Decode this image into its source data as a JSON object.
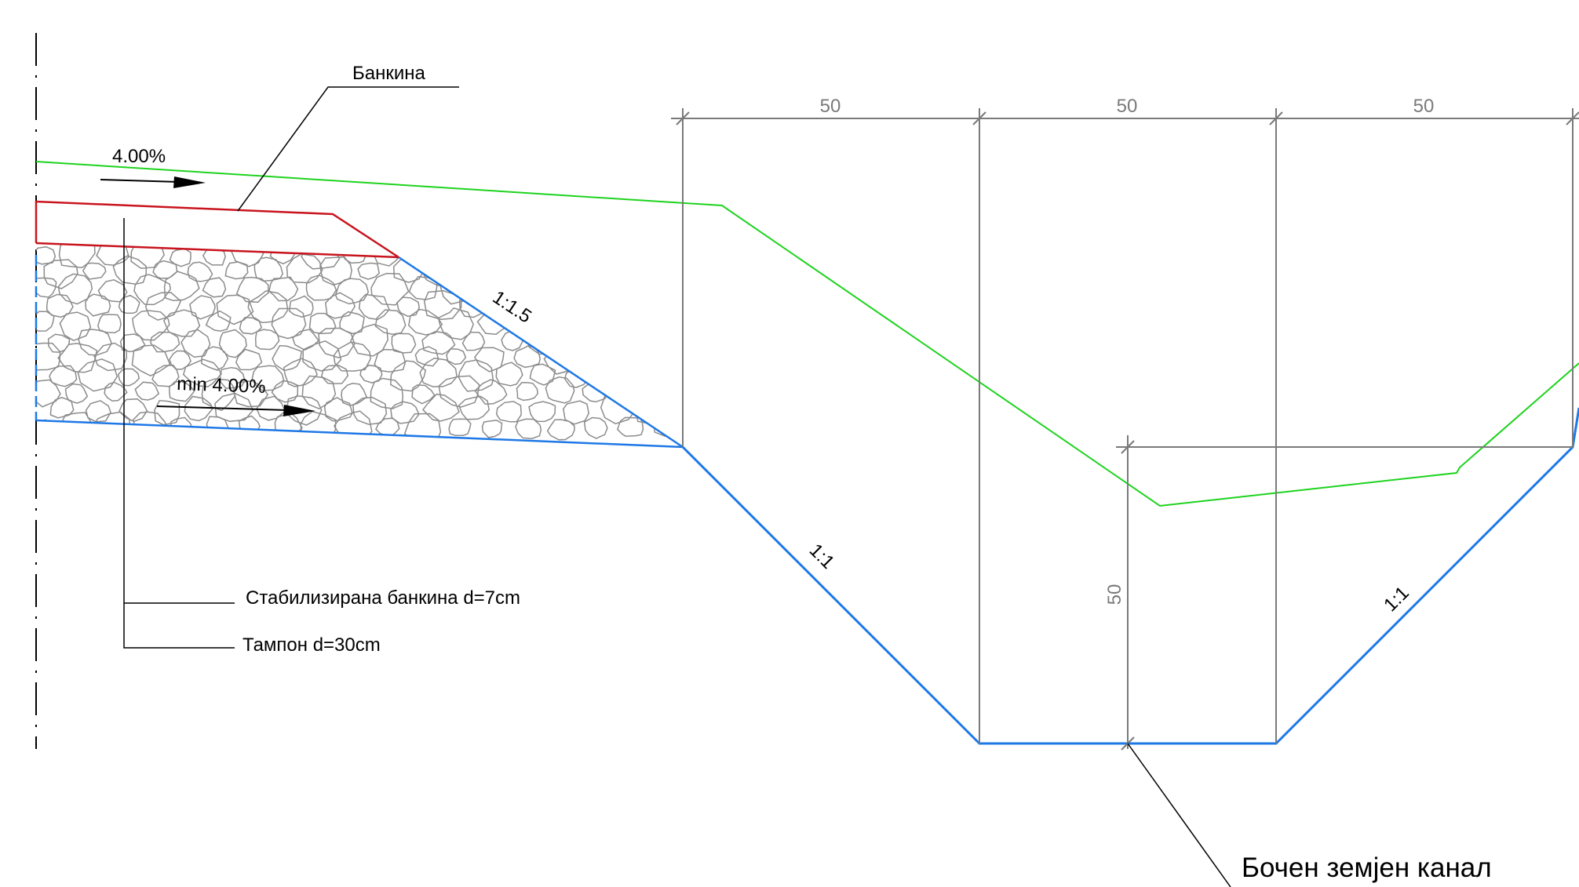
{
  "labels": {
    "shoulder": "Банкина",
    "slope_top": "4.00%",
    "slope_bottom": "min 4.00%",
    "ratio_embankment": "1:1.5",
    "ratio_ditch_left": "1:1",
    "ratio_ditch_right": "1:1",
    "stabilized_shoulder": "Стабилизирана банкина d=7cm",
    "base_layer": "Тампон d=30cm",
    "side_ditch": "Бочен земјен канал"
  },
  "dimensions": {
    "top_1": "50",
    "top_2": "50",
    "top_3": "50",
    "depth": "50"
  },
  "colors": {
    "terrain": "#1ed31e",
    "shoulder_layer": "#c8141e",
    "ditch_profile": "#1e78e6",
    "dimension": "#7a7a7a",
    "leader": "#000000",
    "stone": "#8c8c8c"
  }
}
